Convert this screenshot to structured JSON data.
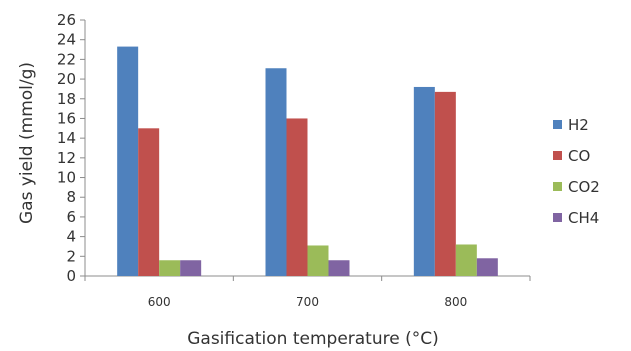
{
  "chart_data": {
    "type": "bar",
    "title": "",
    "xlabel": "Gasification temperature (°C)",
    "ylabel": "Gas yield (mmol/g)",
    "ylim": [
      0,
      26
    ],
    "yticks": [
      0,
      2,
      4,
      6,
      8,
      10,
      12,
      14,
      16,
      18,
      20,
      22,
      24,
      26
    ],
    "categories": [
      "600",
      "700",
      "800"
    ],
    "series": [
      {
        "name": "H2",
        "color": "#4F81BD",
        "values": [
          23.3,
          21.1,
          19.2
        ]
      },
      {
        "name": "CO",
        "color": "#C0504D",
        "values": [
          15.0,
          16.0,
          18.7
        ]
      },
      {
        "name": "CO2",
        "color": "#9BBB59",
        "values": [
          1.6,
          3.1,
          3.2
        ]
      },
      {
        "name": "CH4",
        "color": "#8064A2",
        "values": [
          1.6,
          1.6,
          1.8
        ]
      }
    ],
    "grid": false,
    "legend": "right"
  }
}
